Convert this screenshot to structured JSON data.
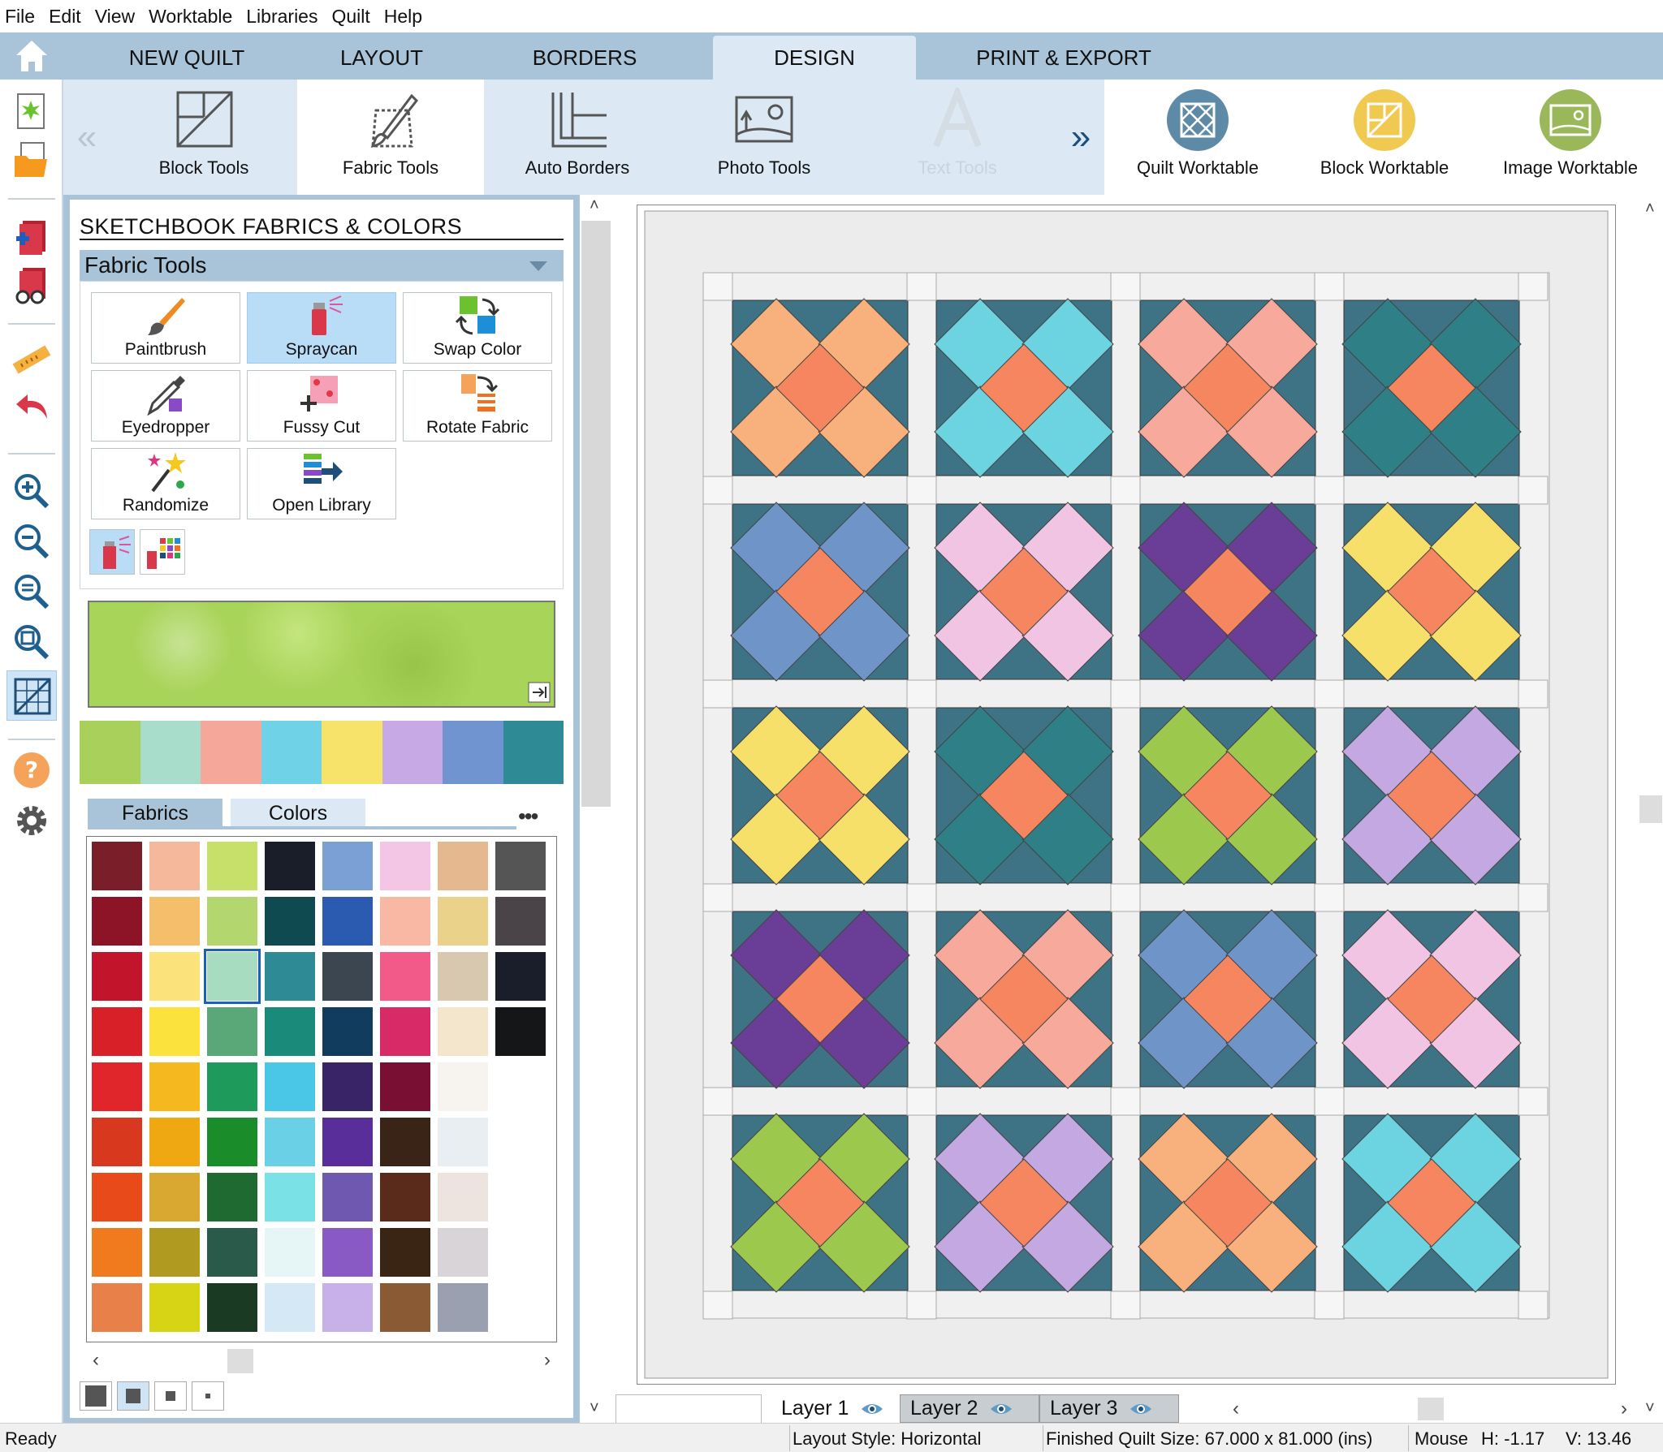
{
  "menu": [
    "File",
    "Edit",
    "View",
    "Worktable",
    "Libraries",
    "Quilt",
    "Help"
  ],
  "tabs": [
    {
      "label": "NEW QUILT",
      "active": false
    },
    {
      "label": "LAYOUT",
      "active": false
    },
    {
      "label": "BORDERS",
      "active": false
    },
    {
      "label": "DESIGN",
      "active": true
    },
    {
      "label": "PRINT & EXPORT",
      "active": false
    }
  ],
  "ribbon": {
    "tools": [
      "Block Tools",
      "Fabric Tools",
      "Auto Borders",
      "Photo Tools",
      "Text Tools"
    ],
    "worktables": [
      "Quilt Worktable",
      "Block Worktable",
      "Image Worktable"
    ],
    "prev_icon": "double-chevron-left-icon",
    "next_icon": "double-chevron-right-icon"
  },
  "sidebar_icons": [
    "new-icon",
    "open-folder-icon",
    "add-to-sketchbook-icon",
    "view-sketchbook-icon",
    "ruler-icon",
    "undo-icon",
    "zoom-in-icon",
    "zoom-out-icon",
    "zoom-fit-icon",
    "zoom-refresh-icon",
    "grid-icon",
    "help-icon",
    "settings-icon"
  ],
  "panel": {
    "title": "SKETCHBOOK FABRICS & COLORS",
    "section": "Fabric Tools",
    "tools": [
      {
        "label": "Paintbrush",
        "active": false
      },
      {
        "label": "Spraycan",
        "active": true
      },
      {
        "label": "Swap Color",
        "active": false
      },
      {
        "label": "Eyedropper",
        "active": false
      },
      {
        "label": "Fussy Cut",
        "active": false
      },
      {
        "label": "Rotate Fabric",
        "active": false
      },
      {
        "label": "Randomize",
        "active": false
      },
      {
        "label": "Open Library",
        "active": false
      }
    ],
    "recent_colors": [
      "#a8d05a",
      "#a8dccb",
      "#f5a89a",
      "#6fd2e6",
      "#f7e36a",
      "#c7a9e6",
      "#6f94cf",
      "#2e8a94"
    ],
    "palette_tabs": [
      "Fabrics",
      "Colors"
    ],
    "more": "•••",
    "swatches": [
      [
        "#7a1f2a",
        "#f5b89a",
        "#c7e06a",
        "#1a1e28",
        "#7aa0d6",
        "#f3c6e6",
        "#e6b890",
        "#555555"
      ],
      [
        "#8c1426",
        "#f5be6a",
        "#b4d66e",
        "#0f4a50",
        "#2a5bb0",
        "#f9b8a4",
        "#ead28a",
        "#4a4448"
      ],
      [
        "#c2142a",
        "#fbe27a",
        "#a8dcc0",
        "#2e8a94",
        "#3c4650",
        "#f25a8a",
        "#d8c8b0",
        "#1a1e2a"
      ],
      [
        "#d82028",
        "#fbe23c",
        "#5aa878",
        "#1a8a7a",
        "#123c5e",
        "#d82a66",
        "#f3e6cc",
        "#141618"
      ],
      [
        "#e0262a",
        "#f5b81e",
        "#1e9a5a",
        "#4ac6e6",
        "#3a2468",
        "#7a0f34",
        "#f7f3ee",
        ""
      ],
      [
        "#d8381e",
        "#f0a812",
        "#1a8c2a",
        "#6ad0e6",
        "#5a2e9a",
        "#3a2418",
        "#e8eef2",
        ""
      ],
      [
        "#e84a1a",
        "#d8a830",
        "#1e6a30",
        "#7ae2e6",
        "#6e58b0",
        "#5a2a1a",
        "#ede4e0",
        ""
      ],
      [
        "#f07a1e",
        "#b09a20",
        "#2a5a4a",
        "#e6f6f6",
        "#8a5ac4",
        "#3a2414",
        "#d8d4d8",
        ""
      ],
      [
        "#e8804a",
        "#d6d414",
        "#1a3a24",
        "#d4e8f6",
        "#c8b0e8",
        "#8a5a34",
        "#9aa0b0",
        ""
      ]
    ],
    "selected_swatch": "2,2"
  },
  "quilt": {
    "background": "#3d7384",
    "center": "#f5865f",
    "sashing": "#f0f0f0",
    "border": "#ececec",
    "blocks": [
      [
        "#f8b07c",
        "#6cd3e0",
        "#f7a99b",
        "#2e7f86"
      ],
      [
        "#6f94c8",
        "#f0c4e2",
        "#6a3d96",
        "#f7e06a"
      ],
      [
        "#f7e06a",
        "#2e7f86",
        "#9cc84e",
        "#c3a8e2"
      ],
      [
        "#6a3d96",
        "#f7a99b",
        "#6f94c8",
        "#f0c4e2"
      ],
      [
        "#9cc84e",
        "#c3a8e2",
        "#f8b07c",
        "#6cd3e0"
      ]
    ]
  },
  "layers": [
    {
      "label": "Layer 1",
      "active": true
    },
    {
      "label": "Layer 2",
      "active": false
    },
    {
      "label": "Layer 3",
      "active": false
    }
  ],
  "status": {
    "ready": "Ready",
    "layout": "Layout Style: Horizontal",
    "size": "Finished Quilt Size: 67.000 x 81.000 (ins)",
    "mouse": "Mouse",
    "h": "H:  -1.17",
    "v": "V:  13.46"
  }
}
